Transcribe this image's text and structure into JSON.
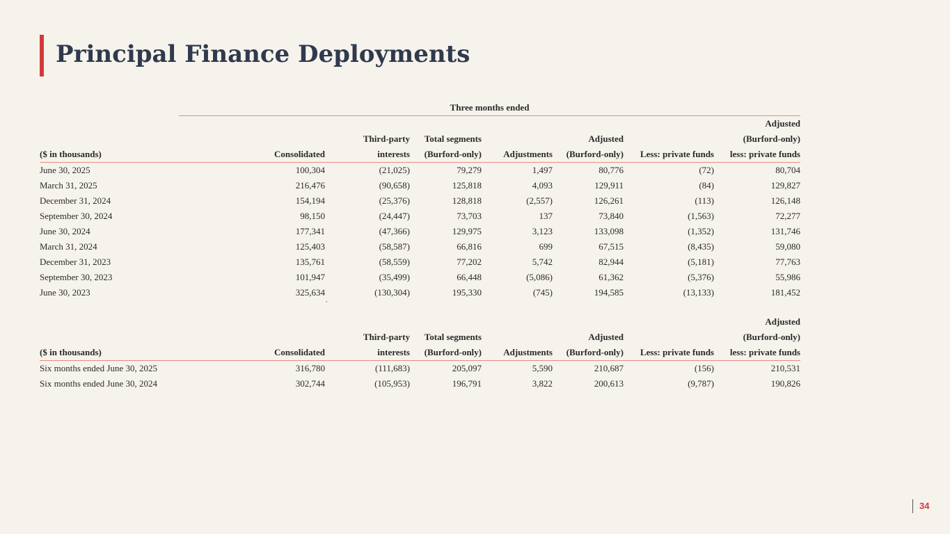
{
  "title": "Principal Finance Deployments",
  "page_number": "34",
  "stray_mark": "`",
  "table1": {
    "group_header": "Three months ended",
    "header_rows": [
      [
        "",
        "",
        "",
        "",
        "",
        "",
        "",
        "Adjusted"
      ],
      [
        "",
        "",
        "Third-party",
        "Total segments",
        "",
        "Adjusted",
        "",
        "(Burford-only)"
      ],
      [
        "($ in thousands)",
        "Consolidated",
        "interests",
        "(Burford-only)",
        "Adjustments",
        "(Burford-only)",
        "Less: private funds",
        "less: private funds"
      ]
    ],
    "rows": [
      [
        "June 30, 2025",
        "100,304",
        "(21,025)",
        "79,279",
        "1,497",
        "80,776",
        "(72)",
        "80,704"
      ],
      [
        "March 31, 2025",
        "216,476",
        "(90,658)",
        "125,818",
        "4,093",
        "129,911",
        "(84)",
        "129,827"
      ],
      [
        "December 31, 2024",
        "154,194",
        "(25,376)",
        "128,818",
        "(2,557)",
        "126,261",
        "(113)",
        "126,148"
      ],
      [
        "September 30, 2024",
        "98,150",
        "(24,447)",
        "73,703",
        "137",
        "73,840",
        "(1,563)",
        "72,277"
      ],
      [
        "June 30, 2024",
        "177,341",
        "(47,366)",
        "129,975",
        "3,123",
        "133,098",
        "(1,352)",
        "131,746"
      ],
      [
        "March 31, 2024",
        "125,403",
        "(58,587)",
        "66,816",
        "699",
        "67,515",
        "(8,435)",
        "59,080"
      ],
      [
        "December 31, 2023",
        "135,761",
        "(58,559)",
        "77,202",
        "5,742",
        "82,944",
        "(5,181)",
        "77,763"
      ],
      [
        "September 30, 2023",
        "101,947",
        "(35,499)",
        "66,448",
        "(5,086)",
        "61,362",
        "(5,376)",
        "55,986"
      ],
      [
        "June 30, 2023",
        "325,634",
        "(130,304)",
        "195,330",
        "(745)",
        "194,585",
        "(13,133)",
        "181,452"
      ]
    ]
  },
  "table2": {
    "header_rows": [
      [
        "",
        "",
        "",
        "",
        "",
        "",
        "",
        "Adjusted"
      ],
      [
        "",
        "",
        "Third-party",
        "Total segments",
        "",
        "Adjusted",
        "",
        "(Burford-only)"
      ],
      [
        "($ in thousands)",
        "Consolidated",
        "interests",
        "(Burford-only)",
        "Adjustments",
        "(Burford-only)",
        "Less: private funds",
        "less: private funds"
      ]
    ],
    "rows": [
      [
        "Six months ended June 30, 2025",
        "316,780",
        "(111,683)",
        "205,097",
        "5,590",
        "210,687",
        "(156)",
        "210,531"
      ],
      [
        "Six months ended June 30, 2024",
        "302,744",
        "(105,953)",
        "196,791",
        "3,822",
        "200,613",
        "(9,787)",
        "190,826"
      ]
    ]
  },
  "colors": {
    "accent": "#d23b3b",
    "title": "#2f3a4e",
    "rule": "#e88b7e",
    "background": "#f6f3ec"
  }
}
